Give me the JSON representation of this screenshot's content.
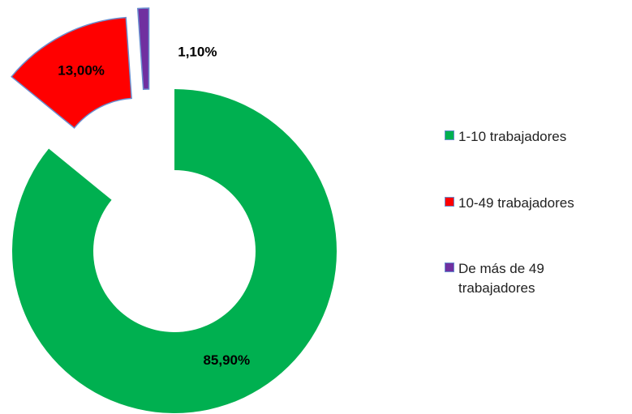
{
  "chart_data": {
    "type": "donut",
    "categories": [
      "1-10 trabajadores",
      "10-49 trabajadores",
      "De más de 49 trabajadores"
    ],
    "values": [
      85.9,
      13.0,
      1.1
    ],
    "value_labels": [
      "85,90%",
      "13,00%",
      "1,10%"
    ],
    "colors": [
      "#00b050",
      "#ff0000",
      "#7030a0"
    ],
    "legend": "right"
  }
}
